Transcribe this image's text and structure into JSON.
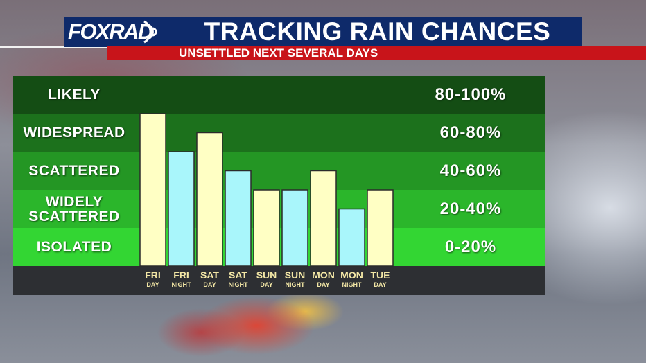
{
  "header": {
    "logo_text": "FOXRAD",
    "title": "TRACKING RAIN CHANCES",
    "subtitle": "UNSETTLED NEXT SEVERAL DAYS"
  },
  "colors": {
    "day_bar": "#ffffc4",
    "night_bar": "#a9f6fb",
    "band_likely": "#144d14",
    "band_widespread": "#1c711c",
    "band_scattered": "#249624",
    "band_widely_scattered": "#2bb62b",
    "band_isolated": "#33d633"
  },
  "bands": [
    {
      "label": "LIKELY",
      "range": "80-100%"
    },
    {
      "label": "WIDESPREAD",
      "range": "60-80%"
    },
    {
      "label": "SCATTERED",
      "range": "40-60%"
    },
    {
      "label": "WIDELY SCATTERED",
      "range": "20-40%"
    },
    {
      "label": "ISOLATED",
      "range": "0-20%"
    }
  ],
  "chart_data": {
    "type": "bar",
    "categories": [
      {
        "day": "FRI",
        "period": "DAY"
      },
      {
        "day": "FRI",
        "period": "NIGHT"
      },
      {
        "day": "SAT",
        "period": "DAY"
      },
      {
        "day": "SAT",
        "period": "NIGHT"
      },
      {
        "day": "SUN",
        "period": "DAY"
      },
      {
        "day": "SUN",
        "period": "NIGHT"
      },
      {
        "day": "MON",
        "period": "DAY"
      },
      {
        "day": "MON",
        "period": "NIGHT"
      },
      {
        "day": "TUE",
        "period": "DAY"
      }
    ],
    "values": [
      80,
      60,
      70,
      50,
      40,
      40,
      50,
      30,
      40
    ],
    "ylim": [
      0,
      100
    ],
    "title": "TRACKING RAIN CHANCES",
    "subtitle": "UNSETTLED NEXT SEVERAL DAYS",
    "grid": false
  }
}
